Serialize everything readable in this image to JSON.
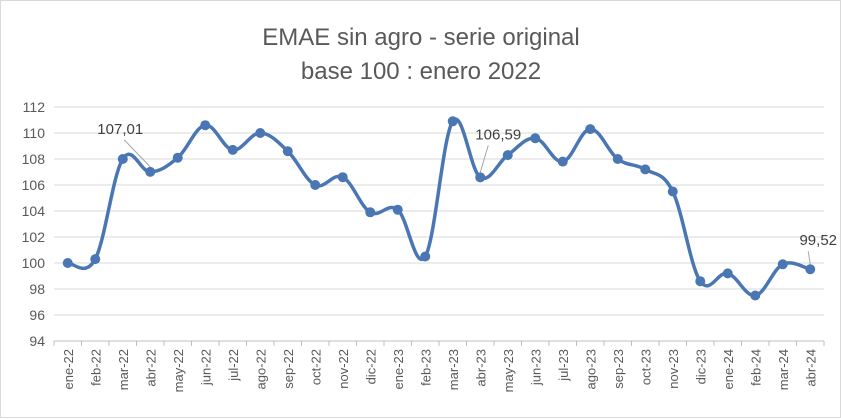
{
  "chart_data": {
    "type": "line",
    "title": [
      "EMAE sin agro - serie original",
      "base 100 : enero 2022"
    ],
    "xlabel": "",
    "ylabel": "",
    "ylim": [
      94,
      112
    ],
    "yticks": [
      94,
      96,
      98,
      100,
      102,
      104,
      106,
      108,
      110,
      112
    ],
    "grid": true,
    "legend": "none",
    "color": "#4a77b4",
    "categories": [
      "ene-22",
      "feb-22",
      "mar-22",
      "abr-22",
      "may-22",
      "jun-22",
      "jul-22",
      "ago-22",
      "sep-22",
      "oct-22",
      "nov-22",
      "dic-22",
      "ene-23",
      "feb-23",
      "mar-23",
      "abr-23",
      "may-23",
      "jun-23",
      "jul-23",
      "ago-23",
      "sep-23",
      "oct-23",
      "nov-23",
      "dic-23",
      "ene-24",
      "feb-24",
      "mar-24",
      "abr-24"
    ],
    "series": [
      {
        "values": [
          100.0,
          100.3,
          108.0,
          107.01,
          108.1,
          110.6,
          108.7,
          110.0,
          108.6,
          106.0,
          106.6,
          103.9,
          104.1,
          100.5,
          110.9,
          106.59,
          108.3,
          109.6,
          107.8,
          110.3,
          108.0,
          107.2,
          105.5,
          98.6,
          99.2,
          97.5,
          99.9,
          99.52
        ]
      }
    ],
    "data_labels": [
      {
        "index": 3,
        "text": "107,01"
      },
      {
        "index": 15,
        "text": "106,59"
      },
      {
        "index": 27,
        "text": "99,52"
      }
    ]
  }
}
